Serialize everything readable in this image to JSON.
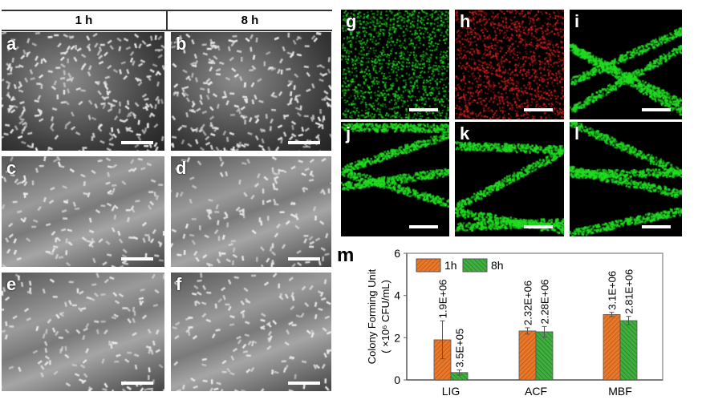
{
  "columns": {
    "left": "1 h",
    "right": "8 h"
  },
  "sem_panels": [
    {
      "label": "a"
    },
    {
      "label": "b"
    },
    {
      "label": "c"
    },
    {
      "label": "d"
    },
    {
      "label": "e"
    },
    {
      "label": "f"
    }
  ],
  "fluorescence_panels": [
    {
      "label": "g",
      "color": "#22dd22"
    },
    {
      "label": "h",
      "color": "#dd2222"
    },
    {
      "label": "i",
      "color": "#22dd22"
    },
    {
      "label": "j",
      "color": "#22dd22"
    },
    {
      "label": "k",
      "color": "#22dd22"
    },
    {
      "label": "l",
      "color": "#22dd22"
    }
  ],
  "chart_data": {
    "panel_label": "m",
    "type": "bar",
    "categories": [
      "LIG",
      "ACF",
      "MBF"
    ],
    "ylabel_line1": "Colony Forming Unit",
    "ylabel_line2": "( ×10⁶ CFU/mL)",
    "ylim": [
      0,
      6
    ],
    "yticks": [
      "0",
      "2",
      "4",
      "6"
    ],
    "legend_position": "top-left",
    "series": [
      {
        "name": "1h",
        "color": "#e8772a",
        "values": [
          1.9,
          2.32,
          3.1
        ],
        "errors": [
          0.9,
          0.15,
          0.1
        ],
        "labels": [
          "1.9E+06",
          "2.32E+06",
          "3.1E+06"
        ]
      },
      {
        "name": "8h",
        "color": "#3fae3f",
        "values": [
          0.35,
          2.28,
          2.81
        ],
        "errors": [
          0.12,
          0.25,
          0.2
        ],
        "labels": [
          "3.5E+05",
          "2.28E+06",
          "2.81E+06"
        ]
      }
    ]
  }
}
